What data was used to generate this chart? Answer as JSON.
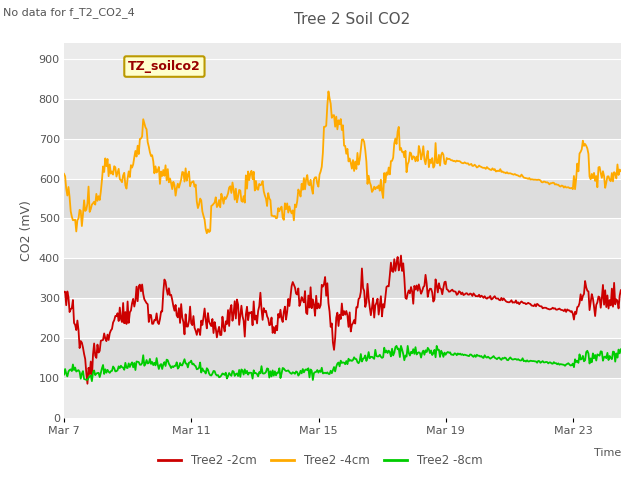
{
  "title": "Tree 2 Soil CO2",
  "subtitle": "No data for f_T2_CO2_4",
  "ylabel": "CO2 (mV)",
  "xlabel": "Time",
  "annotation": "TZ_soilco2",
  "ylim": [
    0,
    940
  ],
  "yticks": [
    0,
    100,
    200,
    300,
    400,
    500,
    600,
    700,
    800,
    900
  ],
  "xtick_labels": [
    "Mar 7",
    "Mar 11",
    "Mar 15",
    "Mar 19",
    "Mar 23"
  ],
  "legend_labels": [
    "Tree2 -2cm",
    "Tree2 -4cm",
    "Tree2 -8cm"
  ],
  "colors": {
    "red": "#cc0000",
    "orange": "#ffaa00",
    "green": "#00cc00",
    "plot_bg": "#ebebeb",
    "band_dark": "#dddddd",
    "band_light": "#ebebeb",
    "grid": "#ffffff",
    "annotation_bg": "#ffffcc",
    "annotation_border": "#bb9900",
    "annotation_text": "#990000",
    "text": "#555555"
  },
  "line_width": 1.3,
  "figsize": [
    6.4,
    4.8
  ],
  "dpi": 100
}
